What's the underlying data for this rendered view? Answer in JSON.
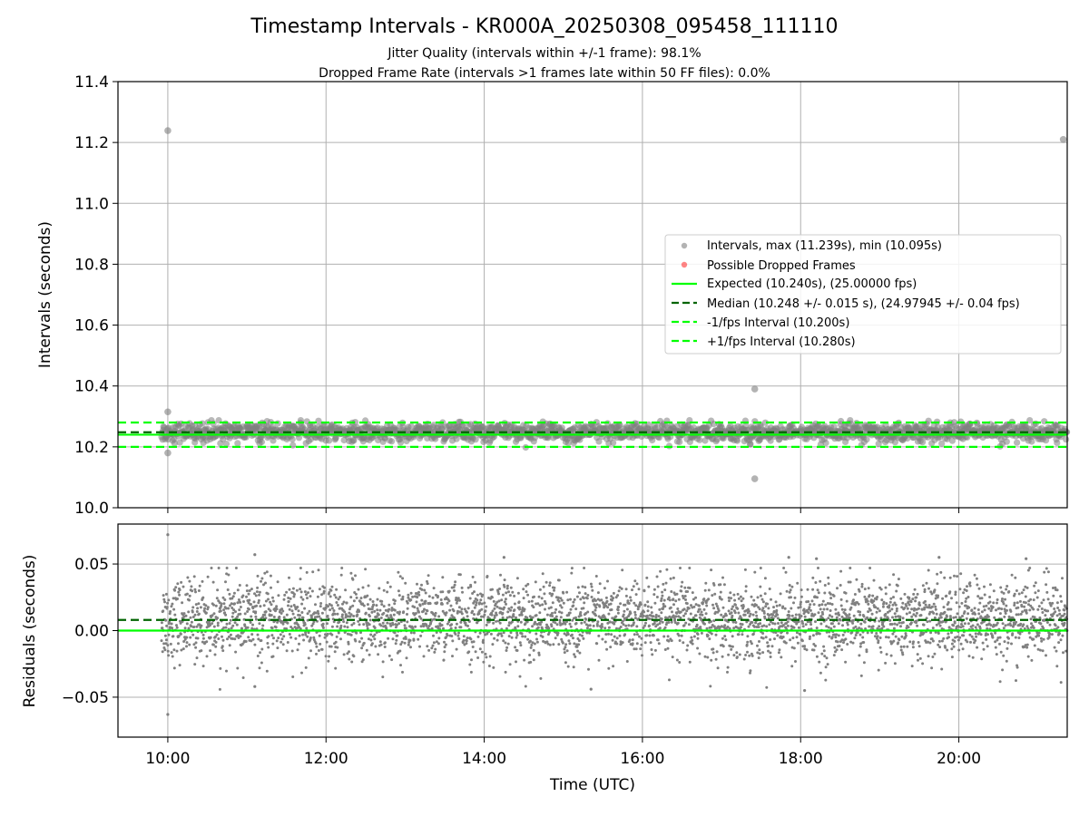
{
  "chart_data": {
    "title": "Timestamp Intervals - KR000A_20250308_095458_111110",
    "subtitle_lines": [
      "Jitter Quality (intervals within +/-1 frame): 98.1%",
      "Dropped Frame Rate (intervals >1 frames late within 50 FF files): 0.0%"
    ],
    "xlabel": "Time (UTC)",
    "x_unit": "hours (UTC)",
    "xlim": [
      9.37,
      21.37
    ],
    "x_ticks": [
      10,
      12,
      14,
      16,
      18,
      20
    ],
    "x_tick_labels": [
      "10:00",
      "12:00",
      "14:00",
      "16:00",
      "18:00",
      "20:00"
    ],
    "colors": {
      "intervals": "#808080",
      "dropped": "#ff3333",
      "expected": "#00ff00",
      "median": "#006400",
      "limits": "#00ff00"
    },
    "panels": [
      {
        "type": "scatter",
        "ylabel": "Intervals (seconds)",
        "ylim": [
          10.0,
          11.4
        ],
        "y_ticks": [
          10.0,
          10.2,
          10.4,
          10.6,
          10.8,
          11.0,
          11.2,
          11.4
        ],
        "y_tick_labels": [
          "10.0",
          "10.2",
          "10.4",
          "10.6",
          "10.8",
          "11.0",
          "11.2",
          "11.4"
        ],
        "grid": true,
        "x_range_data": [
          9.92,
          21.37
        ],
        "band_center": 10.248,
        "band_spread": 0.015,
        "outliers": [
          {
            "x": 10.0,
            "y": 11.239
          },
          {
            "x": 21.32,
            "y": 11.21
          },
          {
            "x": 10.0,
            "y": 10.315
          },
          {
            "x": 10.0,
            "y": 10.18
          },
          {
            "x": 17.42,
            "y": 10.39
          },
          {
            "x": 17.42,
            "y": 10.095
          }
        ],
        "lines": {
          "expected": 10.24,
          "median": 10.248,
          "minus_interval": 10.2,
          "plus_interval": 10.28
        },
        "legend": {
          "placement": "center-right",
          "entries": [
            "Intervals, max (11.239s), min (10.095s)",
            "Possible Dropped Frames",
            "Expected (10.240s), (25.00000 fps)",
            "Median (10.248 +/- 0.015 s), (24.97945 +/- 0.04 fps)",
            "-1/fps Interval (10.200s)",
            "+1/fps Interval (10.280s)"
          ]
        }
      },
      {
        "type": "scatter",
        "ylabel": "Residuals (seconds)",
        "ylim": [
          -0.08,
          0.08
        ],
        "y_ticks": [
          -0.05,
          0.0,
          0.05
        ],
        "y_tick_labels": [
          "−0.05",
          "0.00",
          "0.05"
        ],
        "grid": true,
        "x_range_data": [
          9.92,
          21.37
        ],
        "residual_mean": 0.008,
        "residual_spread": 0.015,
        "outliers": [
          {
            "x": 10.0,
            "y": 0.072
          },
          {
            "x": 10.0,
            "y": -0.063
          },
          {
            "x": 11.1,
            "y": 0.057
          },
          {
            "x": 11.1,
            "y": -0.042
          },
          {
            "x": 14.25,
            "y": 0.055
          },
          {
            "x": 15.35,
            "y": -0.044
          },
          {
            "x": 17.85,
            "y": 0.055
          },
          {
            "x": 18.05,
            "y": -0.045
          },
          {
            "x": 18.2,
            "y": 0.054
          },
          {
            "x": 19.75,
            "y": 0.055
          },
          {
            "x": 20.85,
            "y": 0.054
          }
        ],
        "lines": {
          "expected": 0.0,
          "median": 0.008
        }
      }
    ]
  }
}
